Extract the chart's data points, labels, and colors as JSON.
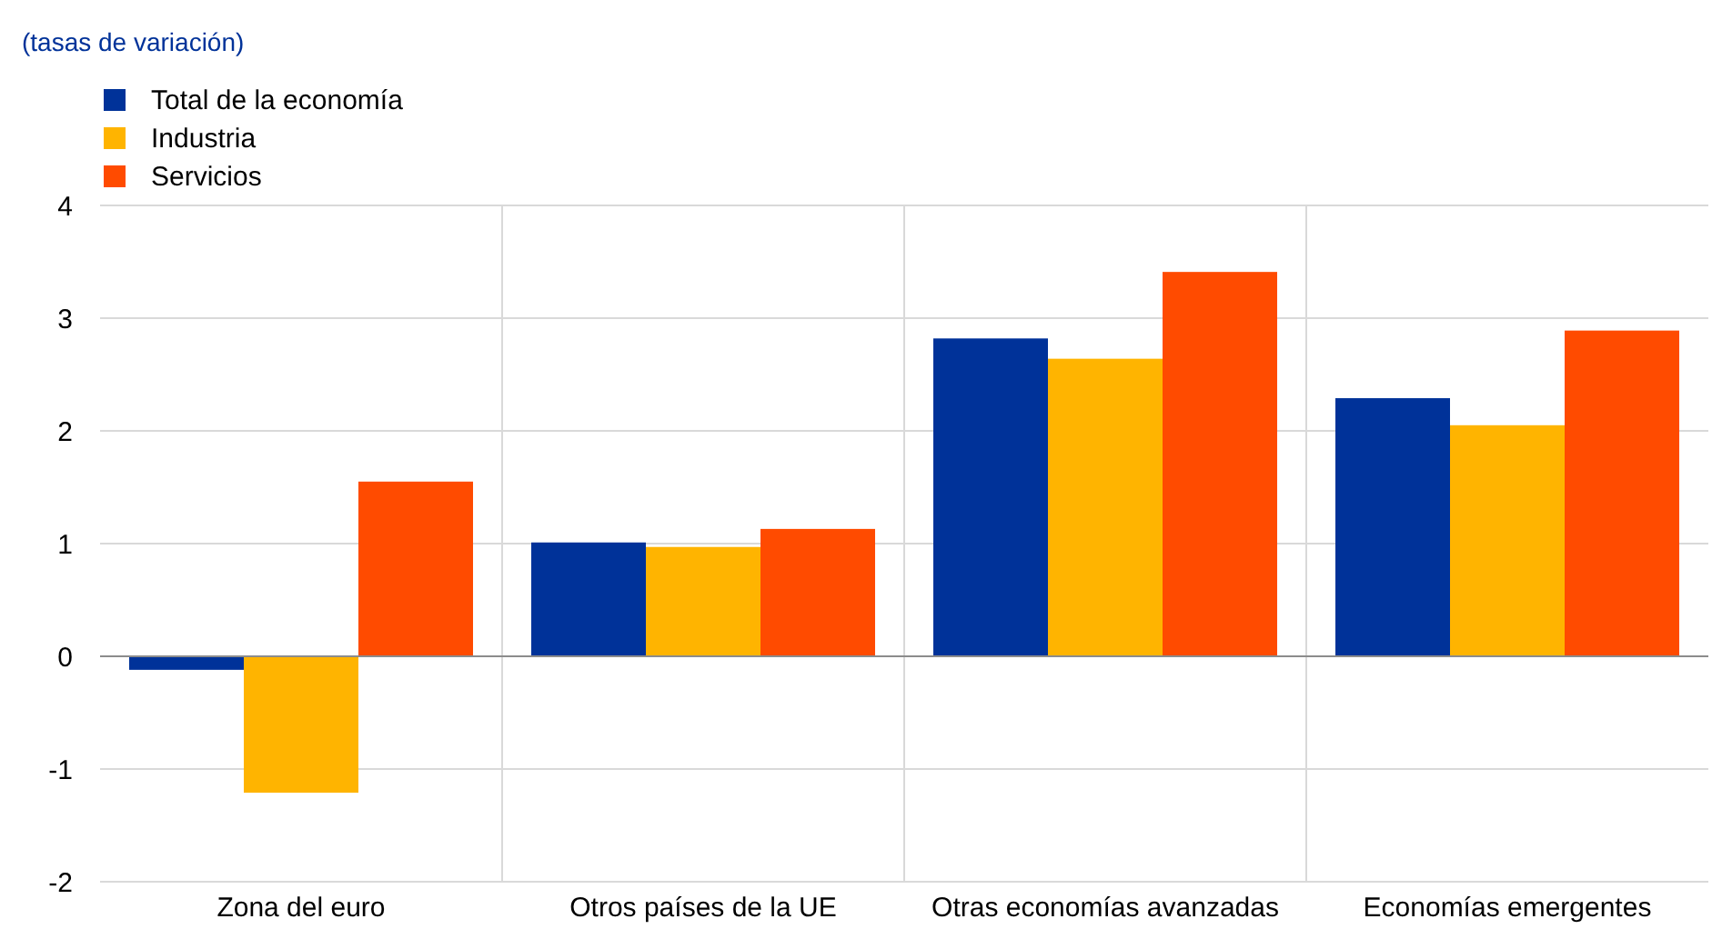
{
  "chart_data": {
    "type": "bar",
    "subtitle": "(tasas de variación)",
    "categories": [
      "Zona del euro",
      "Otros países de la UE",
      "Otras economías avanzadas",
      "Economías emergentes"
    ],
    "series": [
      {
        "name": "Total de la economía",
        "color": "#003299",
        "values": [
          -0.12,
          1.01,
          2.82,
          2.29
        ]
      },
      {
        "name": "Industria",
        "color": "#ffb400",
        "values": [
          -1.21,
          0.97,
          2.64,
          2.05
        ]
      },
      {
        "name": "Servicios",
        "color": "#ff4b00",
        "values": [
          1.55,
          1.13,
          3.41,
          2.89
        ]
      }
    ],
    "ylim": [
      -2,
      4
    ],
    "yticks": [
      -2,
      -1,
      0,
      1,
      2,
      3,
      4
    ],
    "grid": true,
    "legend": "top left"
  }
}
